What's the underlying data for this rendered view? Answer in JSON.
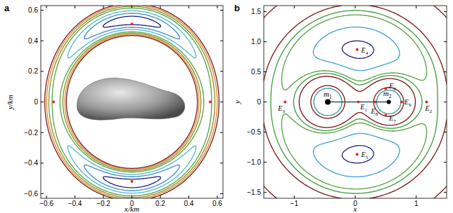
{
  "chart_data": [
    {
      "type": "contour",
      "title": "a",
      "xlabel": "x/km",
      "ylabel": "y/km",
      "xlim": [
        -0.64,
        0.64
      ],
      "ylim": [
        -0.63,
        0.63
      ],
      "xticks": [
        {
          "value": -0.6,
          "label": "−0.6"
        },
        {
          "value": -0.4,
          "label": "−0.4"
        },
        {
          "value": -0.2,
          "label": "−0.2"
        },
        0,
        0.2,
        0.4,
        0.6
      ],
      "yticks": [
        {
          "value": -0.6,
          "label": "−0.6"
        },
        {
          "value": -0.4,
          "label": "−0.4"
        },
        {
          "value": -0.2,
          "label": "−0.2"
        },
        0,
        0.2,
        0.4,
        0.6
      ],
      "contours": [
        {
          "level": 0.4225,
          "color": "#1f1f80"
        },
        {
          "level": 0.4245,
          "color": "#3c8ed8"
        },
        {
          "level": 0.427,
          "color": "#4fb8c8"
        },
        {
          "level": 0.4305,
          "color": "#55a040"
        },
        {
          "level": 0.433,
          "color": "#8c8c20"
        },
        {
          "level": 0.4355,
          "color": "#d88a30"
        },
        {
          "level": 0.438,
          "color": "#7a1414"
        }
      ],
      "points": {
        "x": [
          0.55,
          -0.55,
          0,
          0
        ],
        "y": [
          0,
          0,
          0.51,
          -0.52
        ],
        "color": "#e02828"
      }
    },
    {
      "type": "contour",
      "title": "b",
      "xlabel": "x",
      "ylabel": "y",
      "xlim": [
        -1.5,
        1.5
      ],
      "ylim": [
        -1.6,
        1.6
      ],
      "xticks": [
        {
          "value": -1,
          "label": "−1"
        },
        0,
        1
      ],
      "yticks": [
        {
          "value": -1.5,
          "label": "−1.5"
        },
        {
          "value": -1,
          "label": "−1.0"
        },
        {
          "value": -0.5,
          "label": "−0.5"
        },
        0,
        0.5,
        {
          "value": 1,
          "label": "1.0"
        },
        1.5
      ],
      "contours": [
        {
          "level": 1.4,
          "color": "#1f1f80"
        },
        {
          "level": 1.52,
          "color": "#3aa0d0"
        },
        {
          "level": 1.7,
          "color": "#55a040"
        },
        {
          "level": 1.78,
          "color": "#3c9a3c"
        },
        {
          "level": 1.9,
          "color": "#7a1414"
        },
        {
          "level": 2.6,
          "color": "#7a1414"
        },
        {
          "level": 3.0,
          "color": "#2a9a9a"
        }
      ],
      "bodies": {
        "labels": [
          "m1",
          "m2"
        ],
        "x": [
          -0.45,
          0.55
        ],
        "y": [
          0,
          0
        ],
        "color": "#000000"
      },
      "points": {
        "labels": [
          "E1",
          "E2",
          "E3",
          "E4",
          "E5",
          "E6",
          "E7",
          "E8",
          "E9"
        ],
        "x": [
          0.05,
          1.17,
          -1.15,
          0.03,
          0.03,
          0.5,
          0.5,
          0.33,
          0.76
        ],
        "y": [
          0,
          0,
          0,
          0.87,
          -0.87,
          0.22,
          -0.22,
          0,
          0
        ],
        "color": "#e02828"
      }
    }
  ]
}
